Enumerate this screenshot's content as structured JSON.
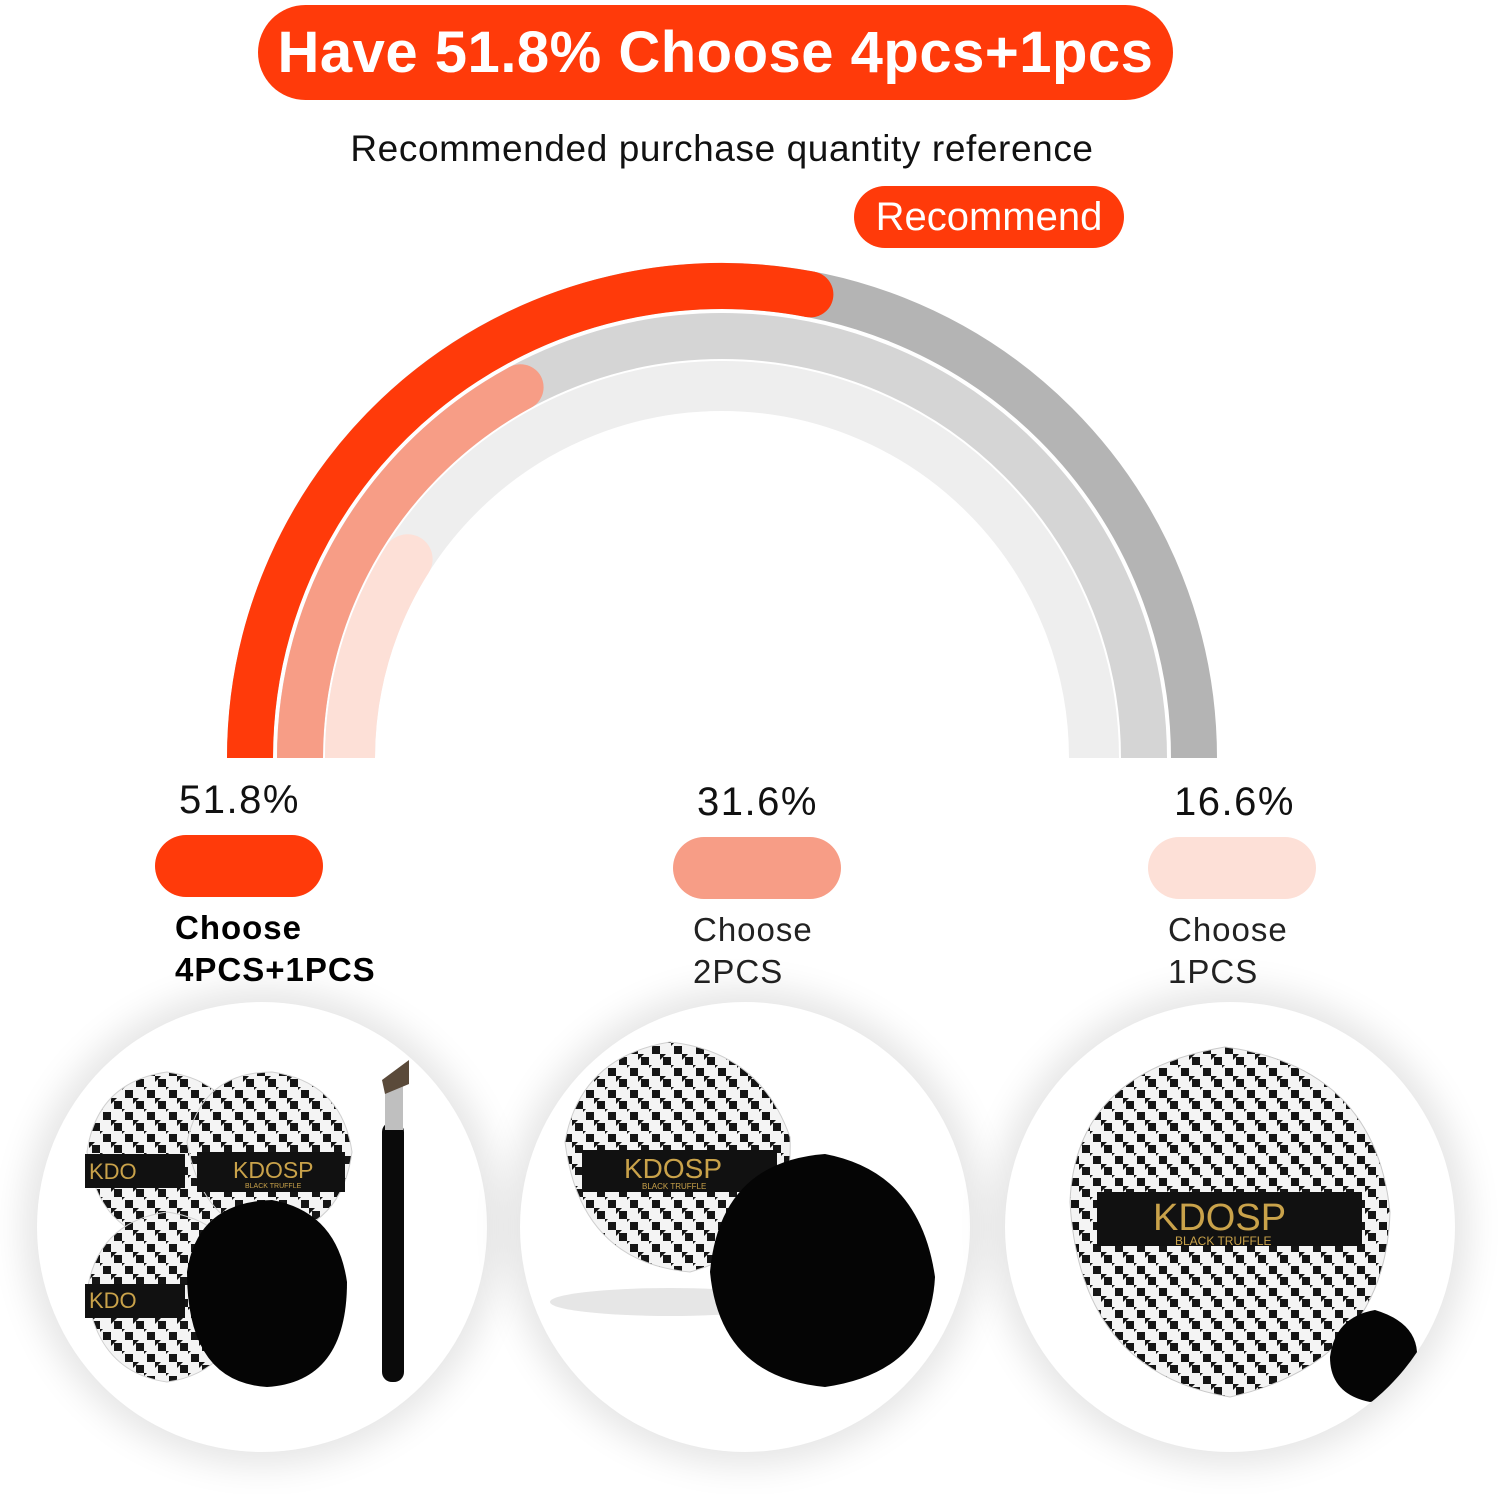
{
  "headline": "Have 51.8% Choose 4pcs+1pcs",
  "subtitle": "Recommended purchase quantity reference",
  "badge": "Recommend",
  "brand": {
    "name": "KDOSP",
    "tagline": "BLACK TRUFFLE",
    "short": "KDO"
  },
  "colors": {
    "accent": "#ff3a0a",
    "mid": "#f79d86",
    "light": "#fde0d7",
    "track_dark": "#b4b4b4",
    "track_mid": "#d5d5d5",
    "track_light": "#eeeeee"
  },
  "chart_data": {
    "type": "pie",
    "style": "concentric half-ring gauge",
    "categories": [
      "Choose 4PCS+1PCS",
      "Choose 2PCS",
      "Choose 1PCS"
    ],
    "values": [
      51.8,
      31.6,
      16.6
    ],
    "unit": "%"
  },
  "options": [
    {
      "percent": "51.8%",
      "line1": "Choose",
      "line2": "4PCS+1PCS"
    },
    {
      "percent": "31.6%",
      "line1": "Choose",
      "line2": "2PCS"
    },
    {
      "percent": "16.6%",
      "line1": "Choose",
      "line2": "1PCS"
    }
  ],
  "products": [
    {
      "icon": "product-set-4plus1-icon"
    },
    {
      "icon": "product-set-2-icon"
    },
    {
      "icon": "product-set-1-icon"
    }
  ]
}
